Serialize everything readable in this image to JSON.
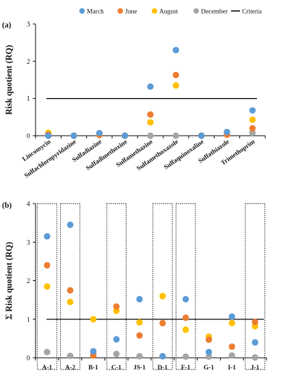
{
  "legend": {
    "items": [
      {
        "label": "March",
        "color": "#5b9bd5",
        "kind": "circle"
      },
      {
        "label": "June",
        "color": "#ed7d31",
        "kind": "circle"
      },
      {
        "label": "August",
        "color": "#ffc000",
        "kind": "circle"
      },
      {
        "label": "December",
        "color": "#a5a5a5",
        "kind": "circle"
      },
      {
        "label": "Criteria",
        "color": "#000000",
        "kind": "line"
      }
    ]
  },
  "chart_data": [
    {
      "type": "scatter",
      "panel_label": "(a)",
      "ylabel": "Risk quotient (RQ)",
      "ylim": [
        0,
        3
      ],
      "yticks": [
        "0",
        "1",
        "2",
        "3"
      ],
      "criteria": 1,
      "categories": [
        "Lincomycin",
        "Sulfachloropyridazine",
        "Sulfadiazine",
        "Sulfadimethoxine",
        "Sulfamethazine",
        "Sulfamethoxazole",
        "Sulfaquinoxaline",
        "Sulfathiazole",
        "Trimethoprim"
      ],
      "series": [
        {
          "name": "March",
          "values": [
            0,
            0,
            0.07,
            0,
            1.32,
            2.3,
            0,
            0.1,
            0.68
          ]
        },
        {
          "name": "June",
          "values": [
            0.03,
            0,
            0.02,
            0,
            0.57,
            1.63,
            0,
            0.03,
            0.2
          ]
        },
        {
          "name": "August",
          "values": [
            0.08,
            0,
            0.02,
            0,
            0.36,
            1.35,
            0,
            0.03,
            0.43
          ]
        },
        {
          "name": "December",
          "values": [
            0,
            0,
            0.06,
            0,
            0,
            0,
            0,
            0.03,
            0.08
          ]
        }
      ]
    },
    {
      "type": "scatter",
      "panel_label": "(b)",
      "ylabel": "Σ Risk quotient (RQ)",
      "ylim": [
        0,
        4
      ],
      "yticks": [
        "0",
        "1",
        "2",
        "3",
        "4"
      ],
      "criteria": 1,
      "categories": [
        "A-1",
        "A-2",
        "B-1",
        "C-1",
        "JS-1",
        "D-1",
        "F-1",
        "G-1",
        "I-1",
        "J-1"
      ],
      "boxed_categories": [
        "A-1",
        "A-2",
        "C-1",
        "D-1",
        "F-1",
        "J-1"
      ],
      "series": [
        {
          "name": "March",
          "values": [
            3.15,
            3.45,
            0.17,
            0.48,
            1.52,
            0.04,
            1.52,
            0.15,
            1.07,
            0.4
          ]
        },
        {
          "name": "June",
          "values": [
            2.4,
            1.75,
            0.06,
            1.33,
            0.58,
            0.9,
            1.04,
            0.47,
            0.29,
            0.93
          ]
        },
        {
          "name": "August",
          "values": [
            1.85,
            1.45,
            1.0,
            1.22,
            0.92,
            1.6,
            0.73,
            0.55,
            0.9,
            0.82
          ]
        },
        {
          "name": "December",
          "values": [
            0.15,
            0.05,
            0.1,
            0.1,
            0.04,
            0.04,
            0.03,
            0.03,
            0.06,
            0.01
          ]
        }
      ]
    }
  ]
}
